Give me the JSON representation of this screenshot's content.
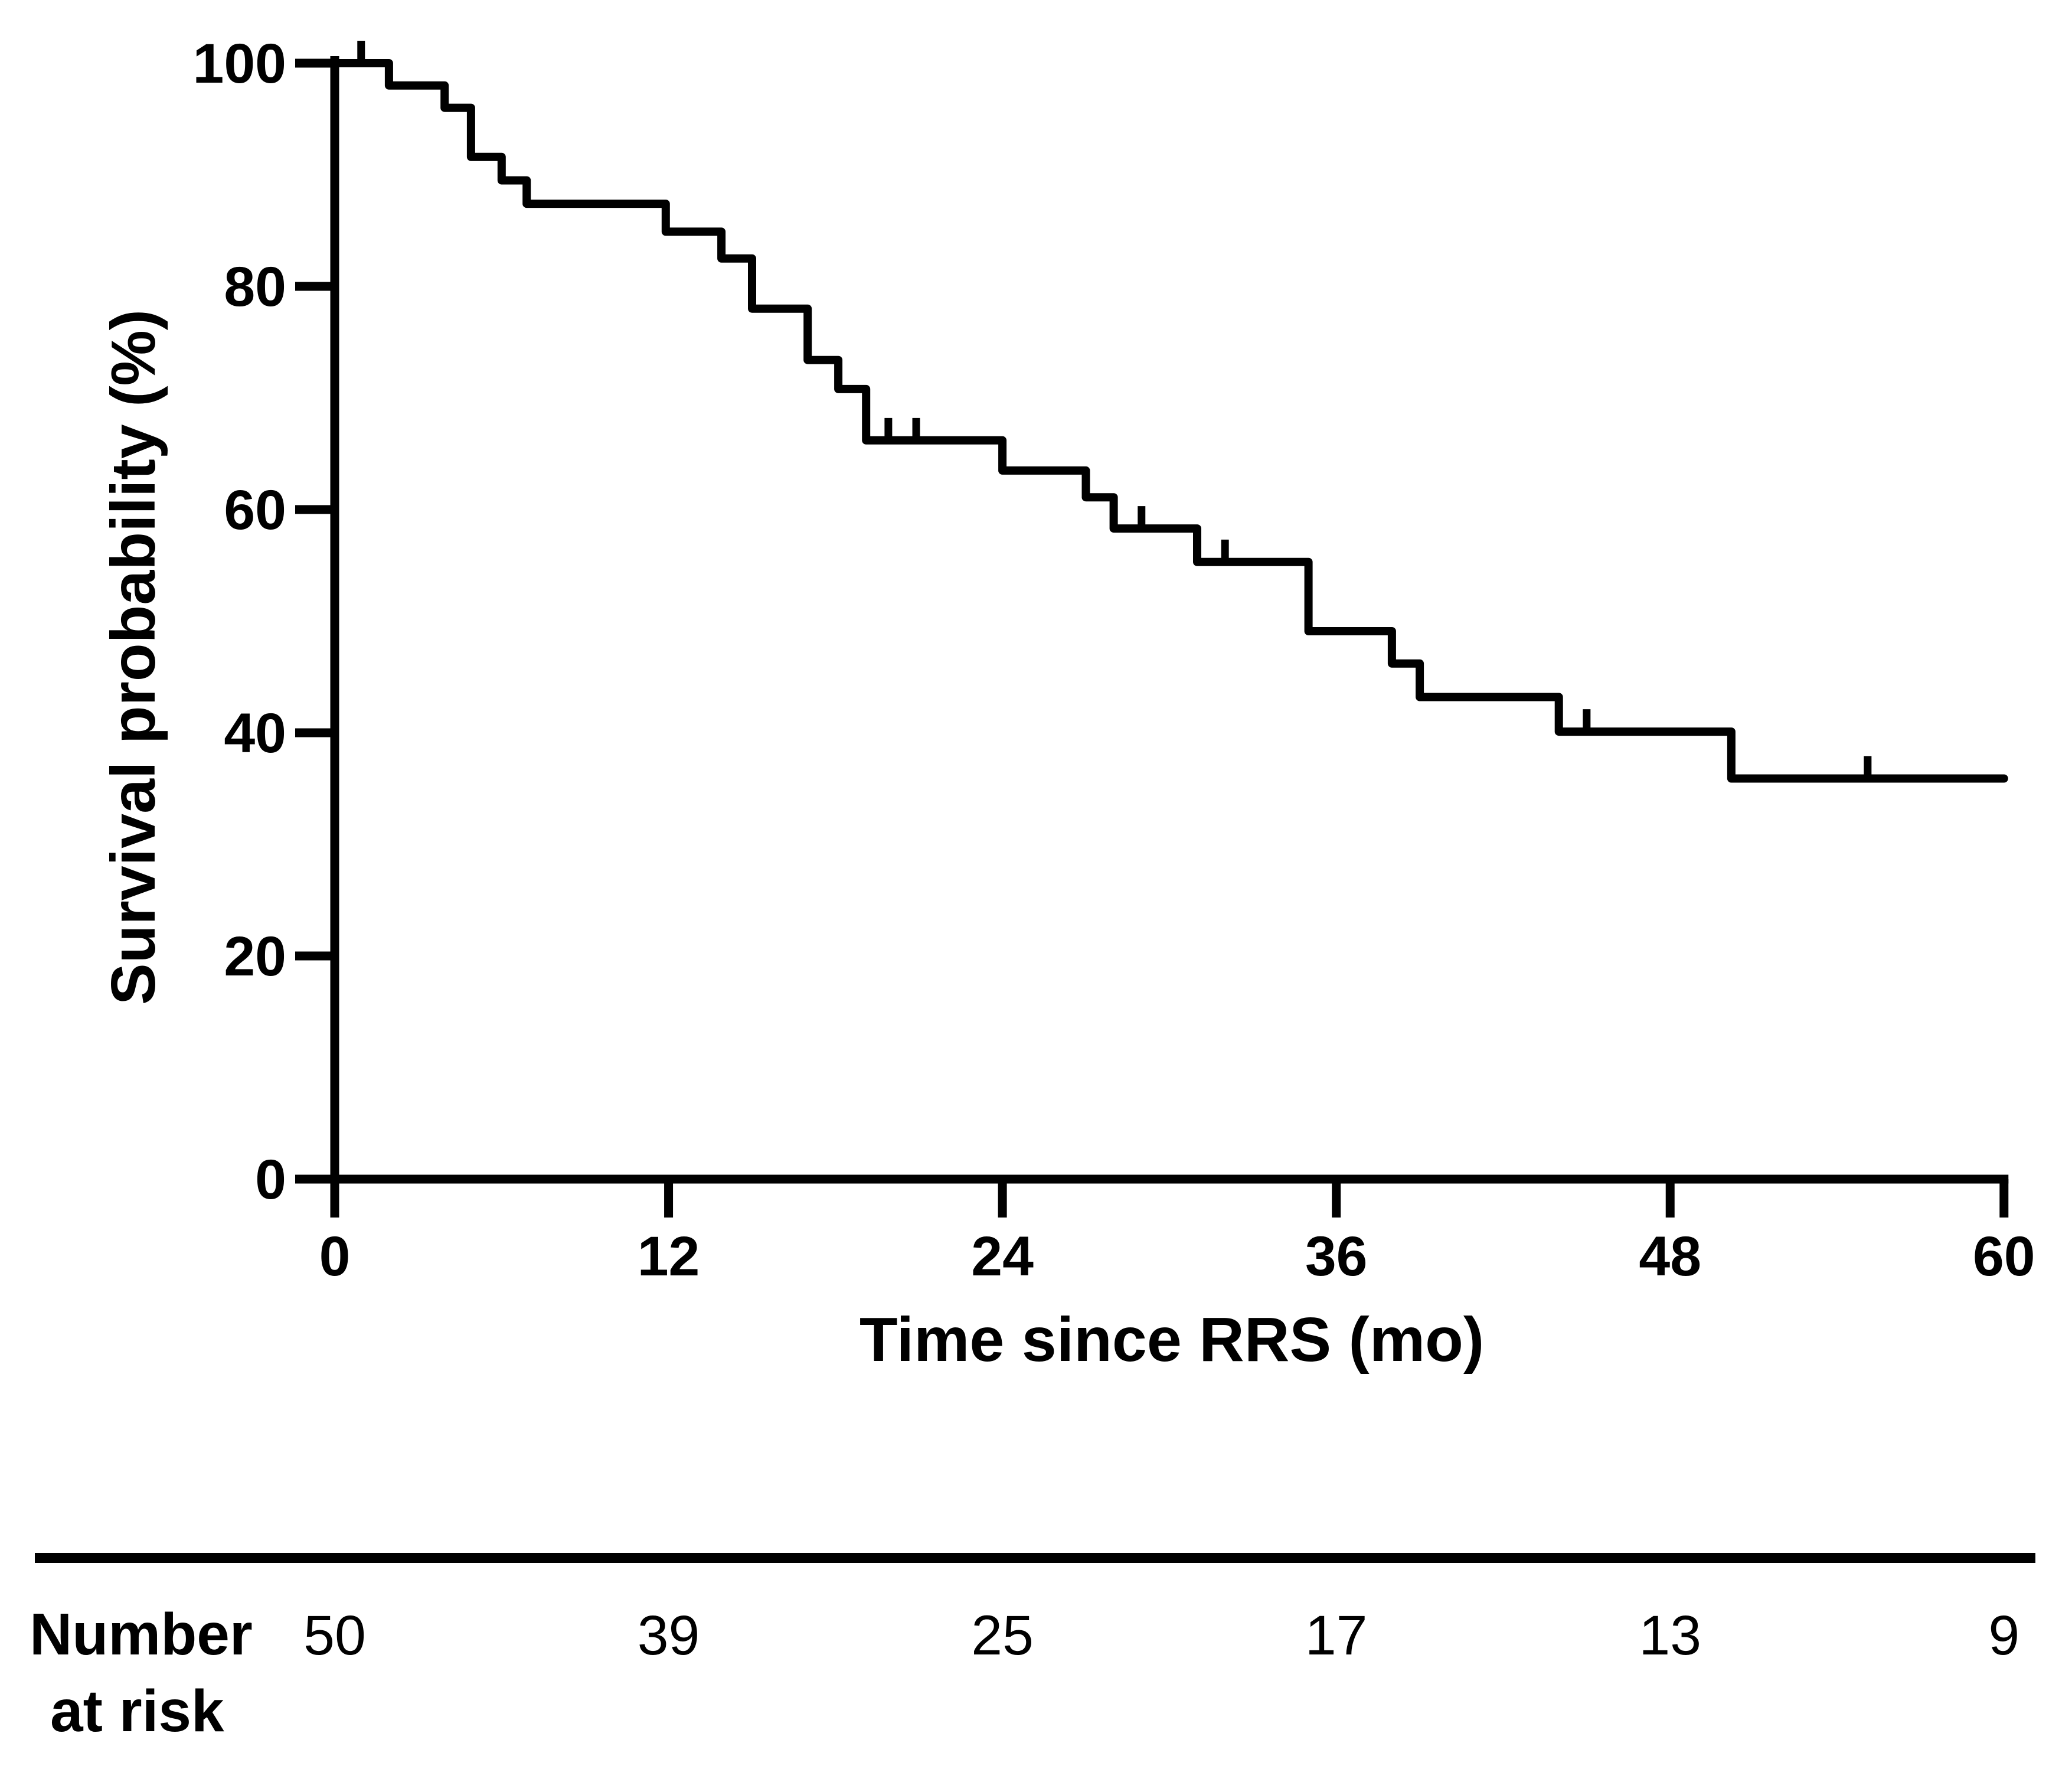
{
  "chart_data": {
    "type": "line",
    "subtype": "kaplan-meier-step",
    "title": "",
    "xlabel": "Time since RRS (mo)",
    "ylabel": "Survival probability (%)",
    "xlim": [
      0,
      60
    ],
    "ylim": [
      0,
      100
    ],
    "x_ticks": [
      0,
      12,
      24,
      36,
      48,
      60
    ],
    "y_ticks": [
      0,
      20,
      40,
      60,
      80,
      100
    ],
    "grid": false,
    "legend": "none",
    "line_color": "#000000",
    "steps": [
      {
        "t": 0,
        "s": 100
      },
      {
        "t": 1.95,
        "s": 98.0
      },
      {
        "t": 3.95,
        "s": 96.0
      },
      {
        "t": 4.9,
        "s": 91.6
      },
      {
        "t": 6.0,
        "s": 89.5
      },
      {
        "t": 6.9,
        "s": 87.4
      },
      {
        "t": 11.9,
        "s": 84.9
      },
      {
        "t": 13.9,
        "s": 82.5
      },
      {
        "t": 15.0,
        "s": 78.0
      },
      {
        "t": 17.0,
        "s": 73.4
      },
      {
        "t": 18.1,
        "s": 70.8
      },
      {
        "t": 19.1,
        "s": 66.2
      },
      {
        "t": 24.0,
        "s": 63.5
      },
      {
        "t": 27.0,
        "s": 61.1
      },
      {
        "t": 28.0,
        "s": 58.3
      },
      {
        "t": 31.0,
        "s": 55.3
      },
      {
        "t": 35.0,
        "s": 49.1
      },
      {
        "t": 38.0,
        "s": 46.2
      },
      {
        "t": 39.0,
        "s": 43.2
      },
      {
        "t": 44.0,
        "s": 40.1
      },
      {
        "t": 50.2,
        "s": 35.9
      }
    ],
    "end_time": 60,
    "censor_marks": [
      {
        "t": 0.95,
        "s": 100
      },
      {
        "t": 19.9,
        "s": 66.2
      },
      {
        "t": 20.9,
        "s": 66.2
      },
      {
        "t": 29.0,
        "s": 58.3
      },
      {
        "t": 32.0,
        "s": 55.3
      },
      {
        "t": 45.0,
        "s": 40.1
      },
      {
        "t": 55.1,
        "s": 35.9
      }
    ]
  },
  "risk_table": {
    "label_line1": "Number",
    "label_line2": "at risk",
    "times": [
      0,
      12,
      24,
      36,
      48,
      60
    ],
    "values": [
      "50",
      "39",
      "25",
      "17",
      "13",
      "9"
    ]
  }
}
